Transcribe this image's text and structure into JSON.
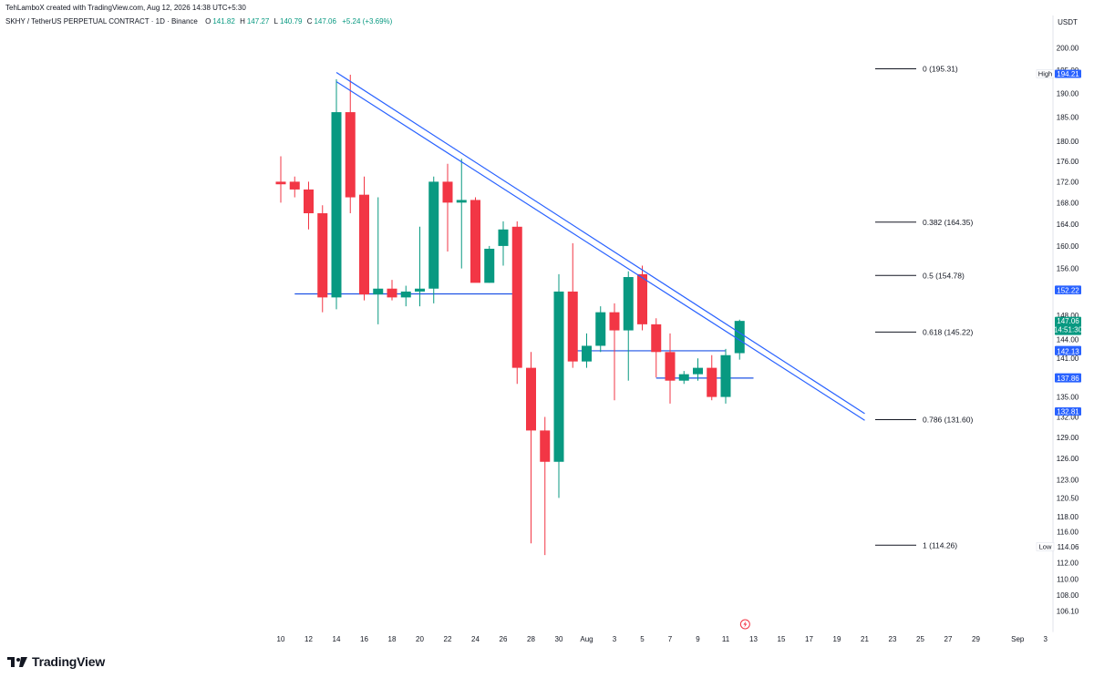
{
  "header": {
    "attribution": "TehLamboX created with TradingView.com, Aug 12, 2026 14:38 UTC+5:30"
  },
  "legend": {
    "symbol": "SKHY / TetherUS PERPETUAL CONTRACT · 1D · Binance",
    "open_label": "O",
    "open": "141.82",
    "high_label": "H",
    "high": "147.27",
    "low_label": "L",
    "low": "140.79",
    "close_label": "C",
    "close": "147.06",
    "change": "+5.24 (+3.69%)"
  },
  "currency": "USDT",
  "brand": "TradingView",
  "colors": {
    "up": "#089981",
    "down": "#F23645",
    "trendline": "#2962FF",
    "hline": "#1E53E5",
    "fib": "#131722",
    "badge": "#2962FF",
    "axis_text": "#131722"
  },
  "chart_data": {
    "type": "candlestick",
    "y_axis": {
      "scale": "log",
      "range": [
        104,
        204
      ],
      "ticks": [
        "106.10",
        "108.00",
        "110.00",
        "112.00",
        "114.00",
        "116.00",
        "118.00",
        "120.50",
        "123.00",
        "126.00",
        "129.00",
        "132.00",
        "135.00",
        "138.00",
        "141.00",
        "144.00",
        "148.00",
        "152.00",
        "156.00",
        "160.00",
        "164.00",
        "168.00",
        "172.00",
        "176.00",
        "180.00",
        "185.00",
        "190.00",
        "195.00",
        "200.00"
      ]
    },
    "x_axis": {
      "ticks": [
        {
          "label": "10",
          "day": 0
        },
        {
          "label": "12",
          "day": 2
        },
        {
          "label": "14",
          "day": 4
        },
        {
          "label": "16",
          "day": 6
        },
        {
          "label": "18",
          "day": 8
        },
        {
          "label": "20",
          "day": 10
        },
        {
          "label": "22",
          "day": 12
        },
        {
          "label": "24",
          "day": 14
        },
        {
          "label": "26",
          "day": 16
        },
        {
          "label": "28",
          "day": 18
        },
        {
          "label": "30",
          "day": 20
        },
        {
          "label": "Aug",
          "day": 22
        },
        {
          "label": "3",
          "day": 24
        },
        {
          "label": "5",
          "day": 26
        },
        {
          "label": "7",
          "day": 28
        },
        {
          "label": "9",
          "day": 30
        },
        {
          "label": "11",
          "day": 32
        },
        {
          "label": "13",
          "day": 34
        },
        {
          "label": "15",
          "day": 36
        },
        {
          "label": "17",
          "day": 38
        },
        {
          "label": "19",
          "day": 40
        },
        {
          "label": "21",
          "day": 42
        },
        {
          "label": "23",
          "day": 44
        },
        {
          "label": "25",
          "day": 46
        },
        {
          "label": "27",
          "day": 48
        },
        {
          "label": "29",
          "day": 50
        },
        {
          "label": "Sep",
          "day": 53
        },
        {
          "label": "3",
          "day": 55
        }
      ]
    },
    "candles": [
      {
        "day": 0,
        "o": 172,
        "h": 177,
        "l": 168,
        "c": 171.5
      },
      {
        "day": 1,
        "o": 172,
        "h": 173,
        "l": 169,
        "c": 170.5
      },
      {
        "day": 2,
        "o": 170.5,
        "h": 172,
        "l": 163,
        "c": 166
      },
      {
        "day": 3,
        "o": 166,
        "h": 167.5,
        "l": 148.5,
        "c": 151
      },
      {
        "day": 4,
        "o": 151,
        "h": 193,
        "l": 149,
        "c": 186
      },
      {
        "day": 5,
        "o": 186,
        "h": 194,
        "l": 166,
        "c": 169
      },
      {
        "day": 6,
        "o": 169.5,
        "h": 173,
        "l": 150.5,
        "c": 151.5
      },
      {
        "day": 7,
        "o": 151.5,
        "h": 169,
        "l": 146.5,
        "c": 152.5
      },
      {
        "day": 8,
        "o": 152.5,
        "h": 154,
        "l": 150.5,
        "c": 151
      },
      {
        "day": 9,
        "o": 151,
        "h": 153,
        "l": 149.5,
        "c": 152
      },
      {
        "day": 10,
        "o": 152,
        "h": 163.5,
        "l": 149.5,
        "c": 152.5
      },
      {
        "day": 11,
        "o": 152.5,
        "h": 173,
        "l": 150,
        "c": 172
      },
      {
        "day": 12,
        "o": 172,
        "h": 175.5,
        "l": 159,
        "c": 168
      },
      {
        "day": 13,
        "o": 168,
        "h": 176.5,
        "l": 156,
        "c": 168.5
      },
      {
        "day": 14,
        "o": 168.5,
        "h": 169,
        "l": 154,
        "c": 153.5
      },
      {
        "day": 15,
        "o": 153.5,
        "h": 160,
        "l": 153.5,
        "c": 159.5
      },
      {
        "day": 16,
        "o": 160,
        "h": 164.5,
        "l": 156.5,
        "c": 163
      },
      {
        "day": 17,
        "o": 163.5,
        "h": 164.5,
        "l": 137,
        "c": 139.5
      },
      {
        "day": 18,
        "o": 139.5,
        "h": 142,
        "l": 114.5,
        "c": 130
      },
      {
        "day": 19,
        "o": 130,
        "h": 132,
        "l": 113,
        "c": 125.5
      },
      {
        "day": 20,
        "o": 125.5,
        "h": 155,
        "l": 120.5,
        "c": 152
      },
      {
        "day": 21,
        "o": 152,
        "h": 160.5,
        "l": 139.5,
        "c": 140.5
      },
      {
        "day": 22,
        "o": 140.5,
        "h": 145,
        "l": 139.5,
        "c": 143
      },
      {
        "day": 23,
        "o": 143,
        "h": 149.5,
        "l": 142,
        "c": 148.5
      },
      {
        "day": 24,
        "o": 148.5,
        "h": 150,
        "l": 134.5,
        "c": 145.5
      },
      {
        "day": 25,
        "o": 145.5,
        "h": 155.5,
        "l": 137.5,
        "c": 154.5
      },
      {
        "day": 26,
        "o": 155,
        "h": 156.5,
        "l": 145.5,
        "c": 146.5
      },
      {
        "day": 27,
        "o": 146.5,
        "h": 147.5,
        "l": 138,
        "c": 142
      },
      {
        "day": 28,
        "o": 142,
        "h": 145,
        "l": 134,
        "c": 137.5
      },
      {
        "day": 29,
        "o": 137.5,
        "h": 139,
        "l": 137,
        "c": 138.5
      },
      {
        "day": 30,
        "o": 138.5,
        "h": 141,
        "l": 137.5,
        "c": 139.5
      },
      {
        "day": 31,
        "o": 139.5,
        "h": 141.5,
        "l": 134.5,
        "c": 135
      },
      {
        "day": 32,
        "o": 135,
        "h": 142.5,
        "l": 134,
        "c": 141.5
      },
      {
        "day": 33,
        "o": 141.82,
        "h": 147.27,
        "l": 140.79,
        "c": 147.06
      }
    ],
    "trendlines": [
      {
        "d1": 4,
        "p1": 194.5,
        "d2": 42,
        "p2": 132.5
      },
      {
        "d1": 4,
        "p1": 192.5,
        "d2": 42,
        "p2": 131.5
      }
    ],
    "hlines": [
      {
        "d1": 1,
        "d2": 17,
        "p": 151.6
      },
      {
        "d1": 21,
        "d2": 32,
        "p": 142.2
      },
      {
        "d1": 27,
        "d2": 34,
        "p": 137.9
      }
    ],
    "fibonacci": [
      {
        "label": "0 (195.31)",
        "p": 195.31
      },
      {
        "label": "0.382 (164.35)",
        "p": 164.35
      },
      {
        "label": "0.5 (154.78)",
        "p": 154.78
      },
      {
        "label": "0.618 (145.22)",
        "p": 145.22
      },
      {
        "label": "0.786 (131.60)",
        "p": 131.6
      },
      {
        "label": "1 (114.26)",
        "p": 114.26
      }
    ],
    "price_badges": [
      {
        "text": "194.21",
        "p": 194.21,
        "tag": "High"
      },
      {
        "text": "152.33",
        "p": 152.33
      },
      {
        "text": "152.22",
        "p": 152.22
      },
      {
        "text": "147.06",
        "p": 147.06,
        "sub": "14:51:30",
        "kind": "last"
      },
      {
        "text": "142.31",
        "p": 142.31
      },
      {
        "text": "142.13",
        "p": 142.13
      },
      {
        "text": "138.01",
        "p": 138.01
      },
      {
        "text": "137.86",
        "p": 137.86
      },
      {
        "text": "132.81",
        "p": 132.81
      },
      {
        "text": "114.06",
        "p": 114.06,
        "tag": "Low",
        "kind": "plain"
      }
    ]
  }
}
